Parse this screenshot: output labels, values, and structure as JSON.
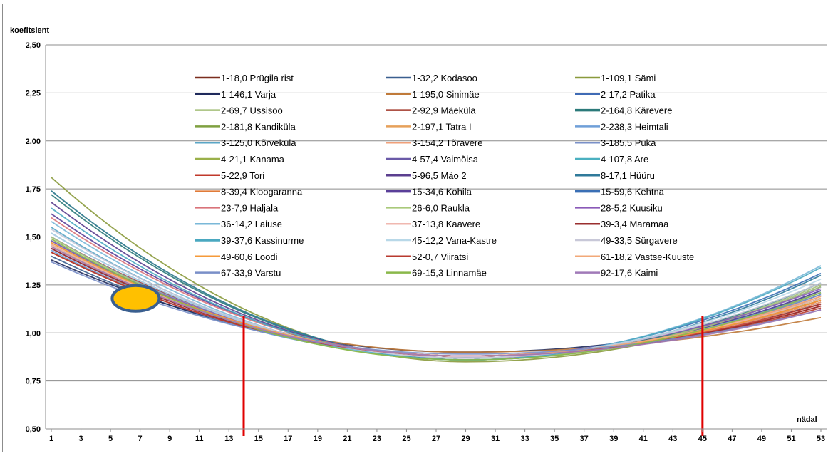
{
  "chart_data": {
    "type": "line",
    "title": "",
    "ylabel": "koefitsient",
    "xlabel": "nädal",
    "x_range": [
      1,
      53
    ],
    "ylim": [
      0.5,
      2.5
    ],
    "y_ticks": [
      "0,50",
      "0,75",
      "1,00",
      "1,25",
      "1,50",
      "1,75",
      "2,00",
      "2,25",
      "2,50"
    ],
    "x_ticks": [
      "1",
      "3",
      "5",
      "7",
      "9",
      "11",
      "13",
      "15",
      "17",
      "19",
      "21",
      "23",
      "25",
      "27",
      "29",
      "31",
      "33",
      "35",
      "37",
      "39",
      "41",
      "43",
      "45",
      "47",
      "49",
      "51",
      "53"
    ],
    "grid": "horizontal",
    "legend_position": "top-center",
    "model": "coefficient = ymin + a*(week-29)^2 for week<29, ymin + b*(week-29)^2 for week>=29",
    "series": [
      {
        "name": "1-18,0 Prügila rist",
        "color": "#7b2d1e",
        "start": 1.44,
        "min": 0.88,
        "end": 1.16
      },
      {
        "name": "1-32,2 Kodasoo",
        "color": "#3a5f8f",
        "start": 1.4,
        "min": 0.88,
        "end": 1.18
      },
      {
        "name": "1-109,1 Sämi",
        "color": "#8a9a3c",
        "start": 1.81,
        "min": 0.85,
        "end": 1.22
      },
      {
        "name": "1-146,1 Varja",
        "color": "#1f2a5c",
        "start": 1.38,
        "min": 0.9,
        "end": 1.15
      },
      {
        "name": "1-195,0 Sinimäe",
        "color": "#c07a3a",
        "start": 1.42,
        "min": 0.9,
        "end": 1.08
      },
      {
        "name": "2-17,2 Patika",
        "color": "#3f6bb5",
        "start": 1.46,
        "min": 0.87,
        "end": 1.2
      },
      {
        "name": "2-69,7 Ussisoo",
        "color": "#a4bf7a",
        "start": 1.74,
        "min": 0.86,
        "end": 1.25
      },
      {
        "name": "2-92,9 Mäeküla",
        "color": "#a33a2c",
        "start": 1.5,
        "min": 0.88,
        "end": 1.14
      },
      {
        "name": "2-164,8 Kärevere",
        "color": "#2b7a7a",
        "start": 1.72,
        "min": 0.86,
        "end": 1.26
      },
      {
        "name": "2-181,8 Kandiküla",
        "color": "#7fa040",
        "start": 1.48,
        "min": 0.87,
        "end": 1.18
      },
      {
        "name": "2-197,1 Tatra I",
        "color": "#e6a05a",
        "start": 1.45,
        "min": 0.88,
        "end": 1.17
      },
      {
        "name": "2-238,3 Heimtali",
        "color": "#6f9fd8",
        "start": 1.43,
        "min": 0.87,
        "end": 1.21
      },
      {
        "name": "3-125,0 Kõrveküla",
        "color": "#5aa6c6",
        "start": 1.55,
        "min": 0.86,
        "end": 1.24
      },
      {
        "name": "3-154,2 Tõravere",
        "color": "#f0a07a",
        "start": 1.47,
        "min": 0.88,
        "end": 1.16
      },
      {
        "name": "3-185,5 Puka",
        "color": "#7a90c8",
        "start": 1.5,
        "min": 0.87,
        "end": 1.2
      },
      {
        "name": "4-21,1 Kanama",
        "color": "#9ab04a",
        "start": 1.46,
        "min": 0.88,
        "end": 1.18
      },
      {
        "name": "4-57,4 Vaimõisa",
        "color": "#6a5aa8",
        "start": 1.44,
        "min": 0.88,
        "end": 1.17
      },
      {
        "name": "4-107,8 Are",
        "color": "#4bb0c0",
        "start": 1.48,
        "min": 0.87,
        "end": 1.22
      },
      {
        "name": "5-22,9 Tori",
        "color": "#c0392b",
        "start": 1.42,
        "min": 0.88,
        "end": 1.15
      },
      {
        "name": "5-96,5 Mäo 2",
        "color": "#5b3f8f",
        "start": 1.68,
        "min": 0.86,
        "end": 1.24
      },
      {
        "name": "8-17,1 Hüüru",
        "color": "#2f7a9a",
        "start": 1.74,
        "min": 0.86,
        "end": 1.3
      },
      {
        "name": "8-39,4 Kloogaranna",
        "color": "#e07b39",
        "start": 1.46,
        "min": 0.88,
        "end": 1.17
      },
      {
        "name": "15-34,6 Kohila",
        "color": "#5a3f99",
        "start": 1.62,
        "min": 0.87,
        "end": 1.22
      },
      {
        "name": "15-59,6 Kehtna",
        "color": "#3a6fb5",
        "start": 1.52,
        "min": 0.87,
        "end": 1.31
      },
      {
        "name": "23-7,9 Haljala",
        "color": "#d9737a",
        "start": 1.6,
        "min": 0.87,
        "end": 1.19
      },
      {
        "name": "26-6,0 Raukla",
        "color": "#a9c97a",
        "start": 1.5,
        "min": 0.86,
        "end": 1.24
      },
      {
        "name": "28-5,2 Kuusiku",
        "color": "#8a5ab8",
        "start": 1.48,
        "min": 0.88,
        "end": 1.23
      },
      {
        "name": "36-14,2 Laiuse",
        "color": "#7ab8d8",
        "start": 1.58,
        "min": 0.86,
        "end": 1.35
      },
      {
        "name": "37-13,8 Kaavere",
        "color": "#f0b8b0",
        "start": 1.46,
        "min": 0.88,
        "end": 1.18
      },
      {
        "name": "39-3,4 Maramaa",
        "color": "#9a2f2f",
        "start": 1.44,
        "min": 0.88,
        "end": 1.14
      },
      {
        "name": "39-37,6 Kassinurme",
        "color": "#4aa8c0",
        "start": 1.65,
        "min": 0.86,
        "end": 1.34
      },
      {
        "name": "45-12,2 Vana-Kastre",
        "color": "#b8d8e8",
        "start": 1.52,
        "min": 0.87,
        "end": 1.28
      },
      {
        "name": "49-33,5 Sürgavere",
        "color": "#c8c8d8",
        "start": 1.54,
        "min": 0.87,
        "end": 1.26
      },
      {
        "name": "49-60,6 Loodi",
        "color": "#f59a3a",
        "start": 1.47,
        "min": 0.88,
        "end": 1.17
      },
      {
        "name": "52-0,7 Viiratsi",
        "color": "#b83a2f",
        "start": 1.42,
        "min": 0.88,
        "end": 1.13
      },
      {
        "name": "61-18,2 Vastse-Kuuste",
        "color": "#f2a878",
        "start": 1.45,
        "min": 0.88,
        "end": 1.19
      },
      {
        "name": "67-33,9 Varstu",
        "color": "#7a8fc8",
        "start": 1.37,
        "min": 0.89,
        "end": 1.12
      },
      {
        "name": "69-15,3 Linnamäe",
        "color": "#8ab84a",
        "start": 1.49,
        "min": 0.86,
        "end": 1.21
      },
      {
        "name": "92-17,6 Kaimi",
        "color": "#a07ab8",
        "start": 1.45,
        "min": 0.88,
        "end": 1.12
      }
    ],
    "annotations": [
      {
        "kind": "vertical-line",
        "x": 14,
        "color": "#e00000"
      },
      {
        "kind": "vertical-line",
        "x": 45,
        "color": "#e00000"
      },
      {
        "kind": "ellipse-marker",
        "x": 6.7,
        "y": 1.18,
        "fill": "#ffc000",
        "stroke": "#3a5f8f"
      }
    ]
  }
}
